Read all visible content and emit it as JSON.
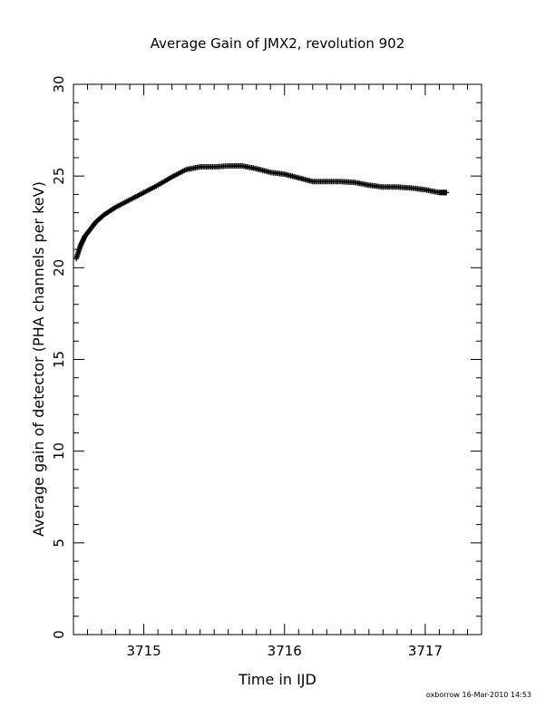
{
  "chart_data": {
    "type": "scatter",
    "title": "Average Gain of JMX2, revolution 902",
    "xlabel": "Time in IJD",
    "ylabel": "Average gain of detector (PHA channels per keV)",
    "xlim": [
      3714.5,
      3717.4
    ],
    "ylim": [
      0,
      30
    ],
    "x_ticks": [
      3715,
      3716,
      3717
    ],
    "y_ticks": [
      0,
      5,
      10,
      15,
      20,
      25,
      30
    ],
    "marker": "plus",
    "color": "#000000",
    "grid": false,
    "curve": [
      {
        "x": 3714.52,
        "y": 20.5
      },
      {
        "x": 3714.55,
        "y": 21.2
      },
      {
        "x": 3714.58,
        "y": 21.7
      },
      {
        "x": 3714.62,
        "y": 22.1
      },
      {
        "x": 3714.66,
        "y": 22.5
      },
      {
        "x": 3714.72,
        "y": 22.9
      },
      {
        "x": 3714.8,
        "y": 23.3
      },
      {
        "x": 3714.9,
        "y": 23.7
      },
      {
        "x": 3715.0,
        "y": 24.1
      },
      {
        "x": 3715.1,
        "y": 24.5
      },
      {
        "x": 3715.2,
        "y": 24.95
      },
      {
        "x": 3715.3,
        "y": 25.35
      },
      {
        "x": 3715.4,
        "y": 25.5
      },
      {
        "x": 3715.5,
        "y": 25.5
      },
      {
        "x": 3715.6,
        "y": 25.55
      },
      {
        "x": 3715.7,
        "y": 25.55
      },
      {
        "x": 3715.8,
        "y": 25.4
      },
      {
        "x": 3715.9,
        "y": 25.2
      },
      {
        "x": 3716.0,
        "y": 25.1
      },
      {
        "x": 3716.1,
        "y": 24.9
      },
      {
        "x": 3716.2,
        "y": 24.7
      },
      {
        "x": 3716.3,
        "y": 24.7
      },
      {
        "x": 3716.4,
        "y": 24.7
      },
      {
        "x": 3716.5,
        "y": 24.65
      },
      {
        "x": 3716.6,
        "y": 24.5
      },
      {
        "x": 3716.7,
        "y": 24.4
      },
      {
        "x": 3716.8,
        "y": 24.4
      },
      {
        "x": 3716.9,
        "y": 24.35
      },
      {
        "x": 3717.0,
        "y": 24.25
      },
      {
        "x": 3717.1,
        "y": 24.1
      },
      {
        "x": 3717.15,
        "y": 24.1
      }
    ]
  },
  "footer": "oxborrow 16-Mar-2010 14:53"
}
